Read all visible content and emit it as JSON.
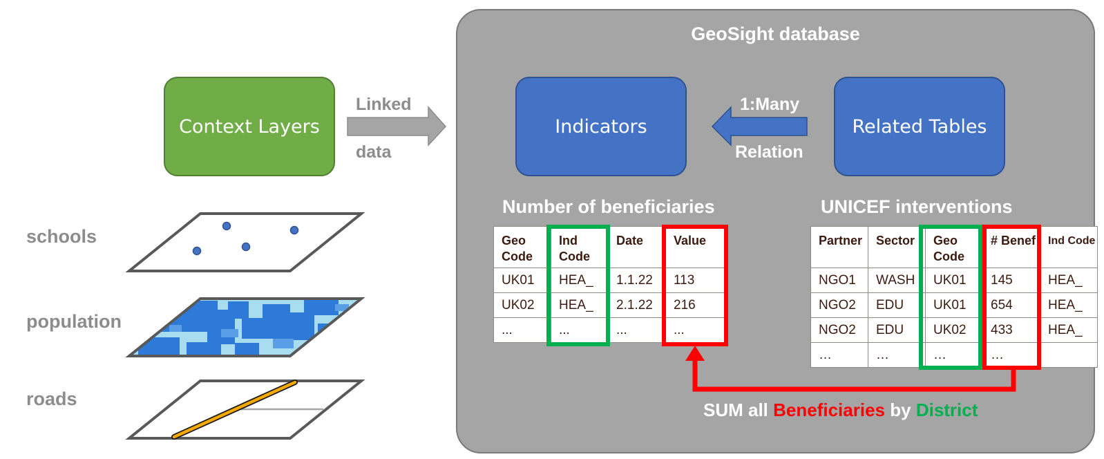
{
  "database": {
    "title": "GeoSight database"
  },
  "context_layers": {
    "label": "Context Layers"
  },
  "linked_arrow": {
    "label_top": "Linked",
    "label_bottom": "data"
  },
  "indicators": {
    "label": "Indicators"
  },
  "related_tables": {
    "label": "Related Tables"
  },
  "relation_arrow": {
    "label_top": "1:Many",
    "label_bottom": "Relation"
  },
  "layers": [
    {
      "label": "schools",
      "icon": "points-map-icon"
    },
    {
      "label": "population",
      "icon": "raster-map-icon"
    },
    {
      "label": "roads",
      "icon": "line-map-icon"
    }
  ],
  "beneficiaries_table": {
    "title": "Number of beneficiaries",
    "headers": [
      "Geo Code",
      "Ind Code",
      "Date",
      "Value"
    ],
    "rows": [
      [
        "UK01",
        "HEA_",
        "1.1.22",
        "113"
      ],
      [
        "UK02",
        "HEA_",
        "2.1.22",
        "216"
      ],
      [
        "...",
        "...",
        "...",
        "..."
      ]
    ]
  },
  "interventions_table": {
    "title": "UNICEF interventions",
    "headers": [
      "Partner",
      "Sector",
      "Geo Code",
      "# Benef",
      "Ind Code"
    ],
    "rows": [
      [
        "NGO1",
        "WASH",
        "UK01",
        "145",
        "HEA_"
      ],
      [
        "NGO2",
        "EDU",
        "UK01",
        "654",
        "HEA_"
      ],
      [
        "NGO2",
        "EDU",
        "UK02",
        "433",
        "HEA_"
      ],
      [
        "…",
        "…",
        "…",
        "…",
        ""
      ]
    ]
  },
  "sum_caption": {
    "prefix": "SUM all ",
    "measure": "Beneficiaries",
    "middle": " by ",
    "group": "District"
  },
  "colors": {
    "panel": "#a5a5a5",
    "green_box": "#70ad47",
    "blue_box": "#4472c4",
    "highlight_green": "#00b050",
    "highlight_red": "#ff0000",
    "road": "#f5a800",
    "point": "#4472c4"
  }
}
